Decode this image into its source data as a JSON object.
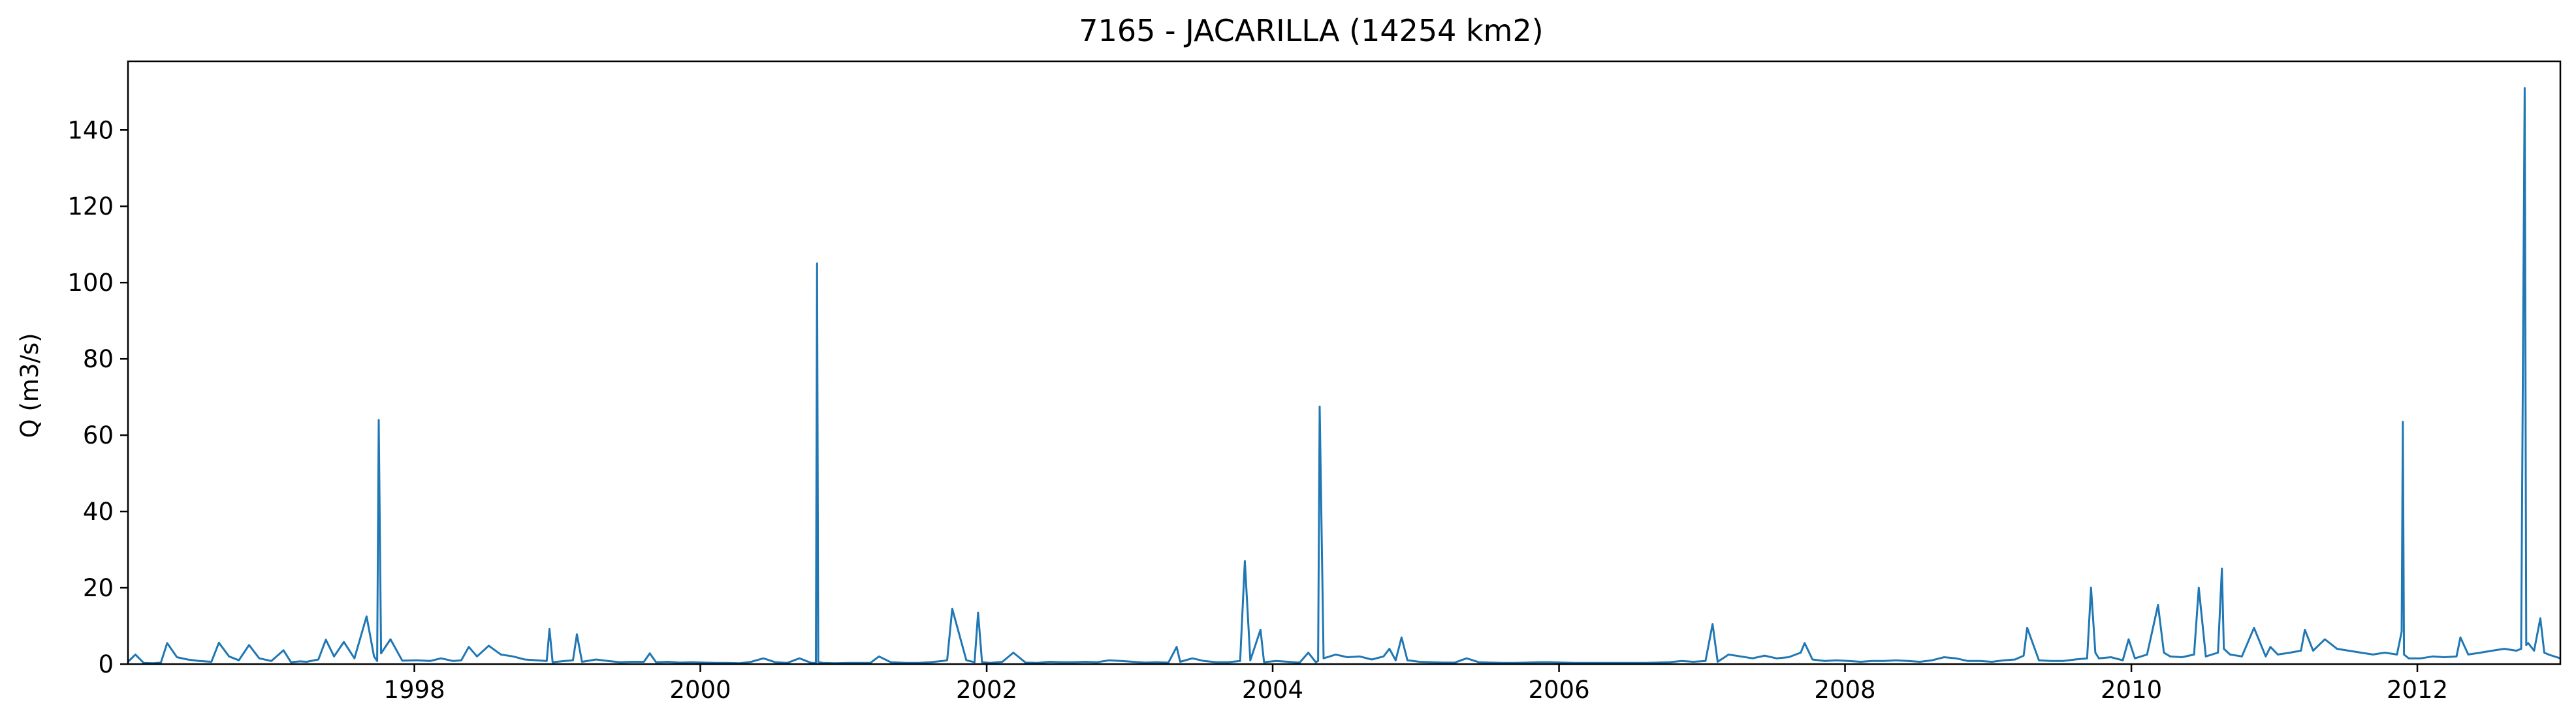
{
  "chart_data": {
    "type": "line",
    "title": "7165 - JACARILLA (14254 km2)",
    "xlabel": "",
    "ylabel": "Q (m3/s)",
    "x_axis": {
      "ticks": [
        "1998",
        "2000",
        "2002",
        "2004",
        "2006",
        "2008",
        "2010",
        "2012"
      ],
      "range": [
        "1996-01-01",
        "2012-12-31"
      ]
    },
    "y_axis": {
      "ticks": [
        "0",
        "20",
        "40",
        "60",
        "80",
        "100",
        "120",
        "140"
      ],
      "ylim": [
        0,
        158
      ]
    },
    "grid": false,
    "legend": "none",
    "colors": {
      "line": "#1f77b4",
      "axes": "#000000"
    },
    "series": [
      {
        "values_note": "",
        "x": [
          "1996-01-01",
          "1996-01-20",
          "1996-02-10",
          "1996-03-05",
          "1996-03-25",
          "1996-04-10",
          "1996-05-05",
          "1996-06-01",
          "1996-07-01",
          "1996-08-01",
          "1996-08-20",
          "1996-09-15",
          "1996-10-10",
          "1996-11-05",
          "1996-12-01",
          "1997-01-01",
          "1997-02-01",
          "1997-02-20",
          "1997-03-15",
          "1997-04-01",
          "1997-05-01",
          "1997-05-20",
          "1997-06-10",
          "1997-07-05",
          "1997-08-01",
          "1997-09-01",
          "1997-09-20",
          "1997-09-28",
          "1997-10-02",
          "1997-10-08",
          "1997-11-01",
          "1997-12-01",
          "1998-01-10",
          "1998-02-10",
          "1998-03-10",
          "1998-04-10",
          "1998-05-01",
          "1998-05-20",
          "1998-06-10",
          "1998-07-10",
          "1998-08-10",
          "1998-09-10",
          "1998-10-10",
          "1998-11-10",
          "1998-12-05",
          "1998-12-12",
          "1998-12-20",
          "1999-01-20",
          "1999-02-10",
          "1999-02-20",
          "1999-03-05",
          "1999-04-10",
          "1999-05-10",
          "1999-06-10",
          "1999-07-10",
          "1999-08-10",
          "1999-08-25",
          "1999-09-10",
          "1999-10-10",
          "1999-11-10",
          "1999-12-10",
          "2000-01-10",
          "2000-02-10",
          "2000-03-10",
          "2000-04-10",
          "2000-05-10",
          "2000-06-10",
          "2000-07-10",
          "2000-08-10",
          "2000-09-10",
          "2000-10-10",
          "2000-10-22",
          "2000-10-25",
          "2000-10-28",
          "2000-11-10",
          "2000-12-10",
          "2001-01-10",
          "2001-02-10",
          "2001-03-10",
          "2001-04-01",
          "2001-05-01",
          "2001-06-10",
          "2001-07-10",
          "2001-08-10",
          "2001-09-10",
          "2001-09-22",
          "2001-10-05",
          "2001-11-10",
          "2001-12-01",
          "2001-12-10",
          "2001-12-20",
          "2002-01-10",
          "2002-02-10",
          "2002-03-10",
          "2002-04-10",
          "2002-05-10",
          "2002-06-10",
          "2002-07-10",
          "2002-08-10",
          "2002-09-10",
          "2002-10-10",
          "2002-11-10",
          "2002-12-10",
          "2003-01-10",
          "2003-02-10",
          "2003-03-10",
          "2003-04-10",
          "2003-05-01",
          "2003-05-10",
          "2003-06-10",
          "2003-07-10",
          "2003-08-10",
          "2003-09-10",
          "2003-10-10",
          "2003-10-22",
          "2003-11-05",
          "2003-12-01",
          "2003-12-10",
          "2003-12-20",
          "2004-01-10",
          "2004-02-10",
          "2004-03-10",
          "2004-04-01",
          "2004-04-20",
          "2004-04-26",
          "2004-04-30",
          "2004-05-10",
          "2004-06-10",
          "2004-07-10",
          "2004-08-10",
          "2004-09-10",
          "2004-10-10",
          "2004-10-25",
          "2004-11-10",
          "2004-11-25",
          "2004-12-10",
          "2005-01-10",
          "2005-02-10",
          "2005-03-10",
          "2005-04-10",
          "2005-05-10",
          "2005-06-10",
          "2005-07-10",
          "2005-08-10",
          "2005-09-10",
          "2005-10-10",
          "2005-11-10",
          "2005-12-10",
          "2006-01-10",
          "2006-02-10",
          "2006-03-10",
          "2006-04-10",
          "2006-05-10",
          "2006-06-10",
          "2006-07-10",
          "2006-08-10",
          "2006-09-10",
          "2006-10-10",
          "2006-11-10",
          "2006-12-10",
          "2007-01-10",
          "2007-01-28",
          "2007-02-10",
          "2007-03-10",
          "2007-04-10",
          "2007-05-10",
          "2007-06-10",
          "2007-07-10",
          "2007-08-10",
          "2007-09-10",
          "2007-09-20",
          "2007-10-10",
          "2007-11-10",
          "2007-12-10",
          "2008-01-10",
          "2008-02-10",
          "2008-03-10",
          "2008-04-10",
          "2008-05-10",
          "2008-06-10",
          "2008-07-10",
          "2008-08-10",
          "2008-09-10",
          "2008-10-10",
          "2008-11-10",
          "2008-12-10",
          "2009-01-10",
          "2009-02-10",
          "2009-03-10",
          "2009-04-01",
          "2009-04-10",
          "2009-05-10",
          "2009-06-10",
          "2009-07-10",
          "2009-08-10",
          "2009-09-10",
          "2009-09-20",
          "2009-10-01",
          "2009-10-10",
          "2009-11-10",
          "2009-12-10",
          "2009-12-25",
          "2010-01-10",
          "2010-02-10",
          "2010-03-10",
          "2010-03-25",
          "2010-04-10",
          "2010-05-10",
          "2010-06-10",
          "2010-06-22",
          "2010-07-10",
          "2010-08-10",
          "2010-08-20",
          "2010-08-25",
          "2010-09-10",
          "2010-10-10",
          "2010-11-10",
          "2010-12-10",
          "2010-12-22",
          "2011-01-10",
          "2011-02-10",
          "2011-03-10",
          "2011-03-20",
          "2011-04-10",
          "2011-05-10",
          "2011-06-10",
          "2011-07-10",
          "2011-08-10",
          "2011-09-10",
          "2011-10-10",
          "2011-11-10",
          "2011-11-22",
          "2011-11-25",
          "2011-11-28",
          "2011-12-10",
          "2012-01-10",
          "2012-02-10",
          "2012-03-10",
          "2012-04-10",
          "2012-04-20",
          "2012-05-10",
          "2012-06-10",
          "2012-07-10",
          "2012-08-10",
          "2012-09-10",
          "2012-09-22",
          "2012-10-01",
          "2012-10-05",
          "2012-10-10",
          "2012-10-25",
          "2012-11-10",
          "2012-11-20",
          "2012-12-01",
          "2012-12-31"
        ],
        "y": [
          0.6,
          2.5,
          0.3,
          0.2,
          0.4,
          5.5,
          1.8,
          1.2,
          0.8,
          0.6,
          5.6,
          2.0,
          1.0,
          5.0,
          1.5,
          0.8,
          3.6,
          0.5,
          0.7,
          0.6,
          1.2,
          6.4,
          2.0,
          5.8,
          1.5,
          12.5,
          2.0,
          0.8,
          64.0,
          2.8,
          6.5,
          0.9,
          1.0,
          0.8,
          1.5,
          0.8,
          1.0,
          4.5,
          2.0,
          4.8,
          2.5,
          2.0,
          1.2,
          1.0,
          0.8,
          9.2,
          0.5,
          0.8,
          1.0,
          7.8,
          0.6,
          1.2,
          0.8,
          0.5,
          0.6,
          0.6,
          2.8,
          0.5,
          0.6,
          0.4,
          0.5,
          0.4,
          0.3,
          0.3,
          0.2,
          0.6,
          1.5,
          0.5,
          0.3,
          1.5,
          0.3,
          0.3,
          105.0,
          0.5,
          0.3,
          0.2,
          0.3,
          0.3,
          0.3,
          2.0,
          0.5,
          0.3,
          0.3,
          0.5,
          0.8,
          1.0,
          14.5,
          1.0,
          0.5,
          13.5,
          0.5,
          0.3,
          0.6,
          3.0,
          0.4,
          0.3,
          0.6,
          0.5,
          0.5,
          0.6,
          0.5,
          1.0,
          0.8,
          0.6,
          0.4,
          0.5,
          0.4,
          4.5,
          0.6,
          1.5,
          0.8,
          0.5,
          0.5,
          0.8,
          27.0,
          1.0,
          9.0,
          0.5,
          0.6,
          0.8,
          0.6,
          0.4,
          3.0,
          0.5,
          0.8,
          67.5,
          1.5,
          2.5,
          1.8,
          2.0,
          1.2,
          2.0,
          4.0,
          1.0,
          7.0,
          1.0,
          0.6,
          0.5,
          0.4,
          0.4,
          1.5,
          0.5,
          0.4,
          0.3,
          0.3,
          0.4,
          0.5,
          0.5,
          0.4,
          0.3,
          0.3,
          0.3,
          0.3,
          0.3,
          0.3,
          0.3,
          0.4,
          0.5,
          0.8,
          0.6,
          0.8,
          10.5,
          0.6,
          2.5,
          2.0,
          1.5,
          2.2,
          1.5,
          1.8,
          3.0,
          5.5,
          1.2,
          0.8,
          1.0,
          0.8,
          0.6,
          0.8,
          0.8,
          1.0,
          0.8,
          0.6,
          1.0,
          1.8,
          1.5,
          0.8,
          0.8,
          0.6,
          1.0,
          1.2,
          2.2,
          9.5,
          1.0,
          0.8,
          0.8,
          1.2,
          1.5,
          20.0,
          3.0,
          1.5,
          1.8,
          1.0,
          6.5,
          1.5,
          2.5,
          15.5,
          3.0,
          2.0,
          1.8,
          2.5,
          20.0,
          2.0,
          3.0,
          25.0,
          4.0,
          2.5,
          2.0,
          9.5,
          2.0,
          4.5,
          2.5,
          3.0,
          3.5,
          9.0,
          3.5,
          6.5,
          4.0,
          3.5,
          3.0,
          2.5,
          3.0,
          2.5,
          8.5,
          63.5,
          2.5,
          1.5,
          1.5,
          2.0,
          1.8,
          2.0,
          7.0,
          2.5,
          3.0,
          3.5,
          4.0,
          3.5,
          4.0,
          151.0,
          5.0,
          5.5,
          3.5,
          12.0,
          3.0,
          2.5,
          1.5
        ]
      }
    ]
  }
}
